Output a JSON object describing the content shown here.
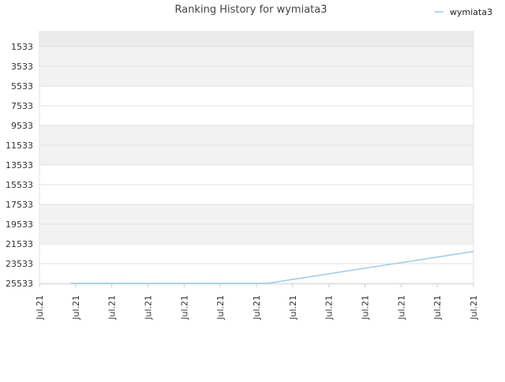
{
  "chart_data": {
    "type": "line",
    "title": "Ranking History for wymiata3",
    "xlabel": "",
    "ylabel": "",
    "y_inverted": true,
    "ylim": [
      25533,
      1533
    ],
    "y_ticks": [
      1533,
      3533,
      5533,
      7533,
      9533,
      11533,
      13533,
      15533,
      17533,
      19533,
      21533,
      23533,
      25533
    ],
    "y_tick_labels": [
      "1533",
      "3533",
      "5533",
      "7533",
      "9533",
      "11533",
      "13533",
      "15533",
      "17533",
      "19533",
      "21533",
      "23533",
      "25533"
    ],
    "x_tick_labels": [
      "Jul.21",
      "Jul.21",
      "Jul.21",
      "Jul.21",
      "Jul.21",
      "Jul.21",
      "Jul.21",
      "Jul.21",
      "Jul.21",
      "Jul.21",
      "Jul.21",
      "Jul.21",
      "Jul.21"
    ],
    "legend": {
      "position": "top-right"
    },
    "grid": "alternating-bands",
    "colors": {
      "line": "#9ecae9",
      "band_light": "#f2f2f2",
      "band_white": "#ffffff",
      "band_top": "#ebebeb",
      "text": "#333333"
    },
    "series": [
      {
        "name": "wymiata3",
        "x": [
          0.85,
          6.3,
          12
        ],
        "values": [
          25533,
          25533,
          22303
        ]
      }
    ]
  }
}
